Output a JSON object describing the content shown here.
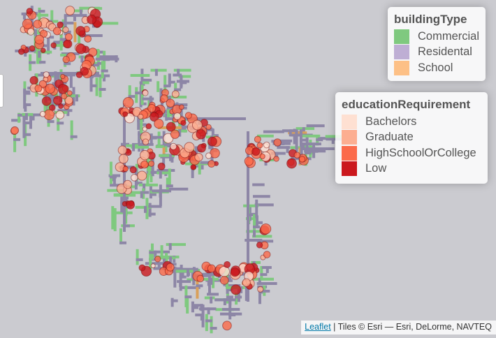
{
  "legends": {
    "buildingType": {
      "title": "buildingType",
      "items": [
        {
          "label": "Commercial",
          "color": "#7fc97f"
        },
        {
          "label": "Residental",
          "color": "#beaed4"
        },
        {
          "label": "School",
          "color": "#fdc086"
        }
      ]
    },
    "educationRequirement": {
      "title": "educationRequirement",
      "items": [
        {
          "label": "Bachelors",
          "color": "#fee0d2"
        },
        {
          "label": "Graduate",
          "color": "#fcae91"
        },
        {
          "label": "HighSchoolOrCollege",
          "color": "#fb6a4a"
        },
        {
          "label": "Low",
          "color": "#cb181d"
        }
      ]
    }
  },
  "attribution": {
    "link": "Leaflet",
    "text": " | Tiles © Esri — Esri, DeLorme, NAVTEQ"
  },
  "map": {
    "background": "#cbcbd0",
    "residential_color": "#8d86a6",
    "commercial_color": "#7fc97f",
    "school_color": "#d9a05b"
  }
}
